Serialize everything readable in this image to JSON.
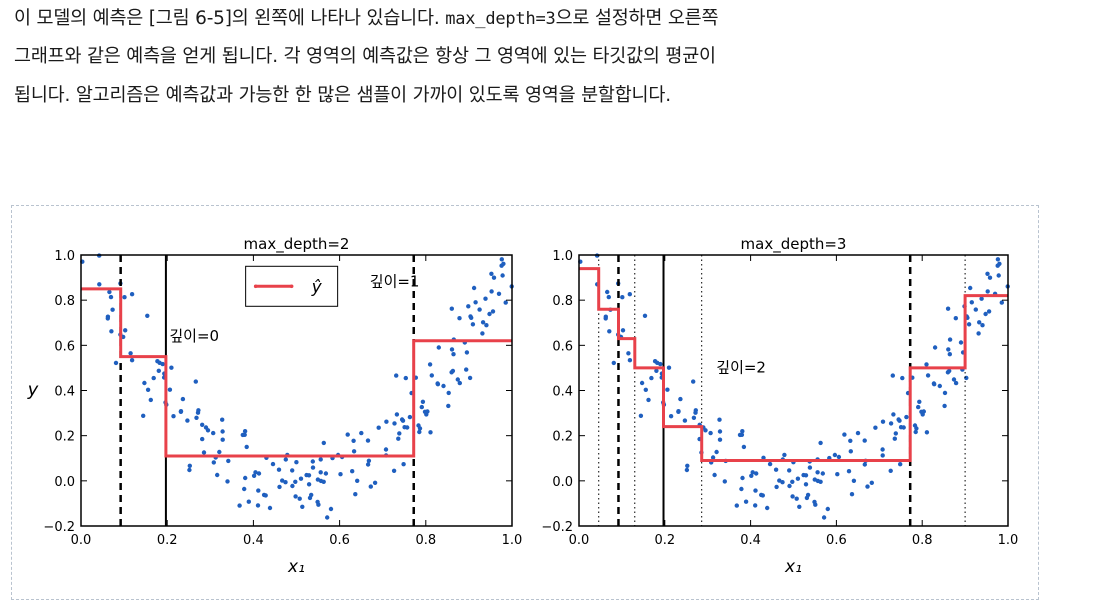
{
  "text": {
    "line1_a": "이 모델의 예측은 [그림 6-5]의 왼쪽에 나타나 있습니다. ",
    "line1_code": "max_depth=3",
    "line1_b": "으로 설정하면 오른쪽",
    "line2": "그래프와 같은 예측을 얻게 됩니다. 각 영역의 예측값은 항상 그 영역에 있는 타깃값의 평균이",
    "line3": "됩니다. 알고리즘은 예측값과 가능한 한 많은 샘플이 가까이 있도록 영역을 분할합니다."
  },
  "colors": {
    "points": "#1f5fbf",
    "prediction": "#e8414a",
    "split": "#000000"
  },
  "chart_data": [
    {
      "type": "scatter",
      "title": "max_depth=2",
      "xlabel": "x₁",
      "ylabel": "y",
      "xlim": [
        0.0,
        1.0
      ],
      "ylim": [
        -0.2,
        1.0
      ],
      "xticks": [
        "0.0",
        "0.2",
        "0.4",
        "0.6",
        "0.8",
        "1.0"
      ],
      "yticks": [
        "−0.2",
        "0.0",
        "0.2",
        "0.4",
        "0.6",
        "0.8",
        "1.0"
      ],
      "legend": {
        "label": "ŷ",
        "position": "top-center"
      },
      "annotations": [
        {
          "text": "깊이=0",
          "x": 0.205,
          "y": 0.62
        },
        {
          "text": "깊이=1",
          "x": 0.67,
          "y": 0.86
        }
      ],
      "splits": [
        {
          "x": 0.197,
          "style": "solid",
          "depth": 0
        },
        {
          "x": 0.092,
          "style": "dashed",
          "depth": 1
        },
        {
          "x": 0.772,
          "style": "dashed",
          "depth": 1
        }
      ],
      "prediction": {
        "x": [
          0.0,
          0.092,
          0.092,
          0.197,
          0.197,
          0.772,
          0.772,
          1.0
        ],
        "y": [
          0.85,
          0.85,
          0.55,
          0.55,
          0.11,
          0.11,
          0.62,
          0.62
        ]
      },
      "scatter_seed": 42
    },
    {
      "type": "scatter",
      "title": "max_depth=3",
      "xlabel": "x₁",
      "ylabel": "",
      "xlim": [
        0.0,
        1.0
      ],
      "ylim": [
        -0.2,
        1.0
      ],
      "xticks": [
        "0.0",
        "0.2",
        "0.4",
        "0.6",
        "0.8",
        "1.0"
      ],
      "yticks": [
        "−0.2",
        "0.0",
        "0.2",
        "0.4",
        "0.6",
        "0.8",
        "1.0"
      ],
      "annotations": [
        {
          "text": "깊이=2",
          "x": 0.32,
          "y": 0.48
        }
      ],
      "splits": [
        {
          "x": 0.197,
          "style": "solid",
          "depth": 0
        },
        {
          "x": 0.092,
          "style": "dashed",
          "depth": 1
        },
        {
          "x": 0.772,
          "style": "dashed",
          "depth": 1
        },
        {
          "x": 0.046,
          "style": "dotted",
          "depth": 2
        },
        {
          "x": 0.13,
          "style": "dotted",
          "depth": 2
        },
        {
          "x": 0.286,
          "style": "dotted",
          "depth": 2
        },
        {
          "x": 0.9,
          "style": "dotted",
          "depth": 2
        }
      ],
      "prediction": {
        "x": [
          0.0,
          0.046,
          0.046,
          0.092,
          0.092,
          0.13,
          0.13,
          0.197,
          0.197,
          0.286,
          0.286,
          0.772,
          0.772,
          0.9,
          0.9,
          1.0
        ],
        "y": [
          0.94,
          0.94,
          0.76,
          0.76,
          0.63,
          0.63,
          0.5,
          0.5,
          0.24,
          0.24,
          0.09,
          0.09,
          0.5,
          0.5,
          0.82,
          0.82
        ]
      },
      "scatter_seed": 42
    }
  ]
}
